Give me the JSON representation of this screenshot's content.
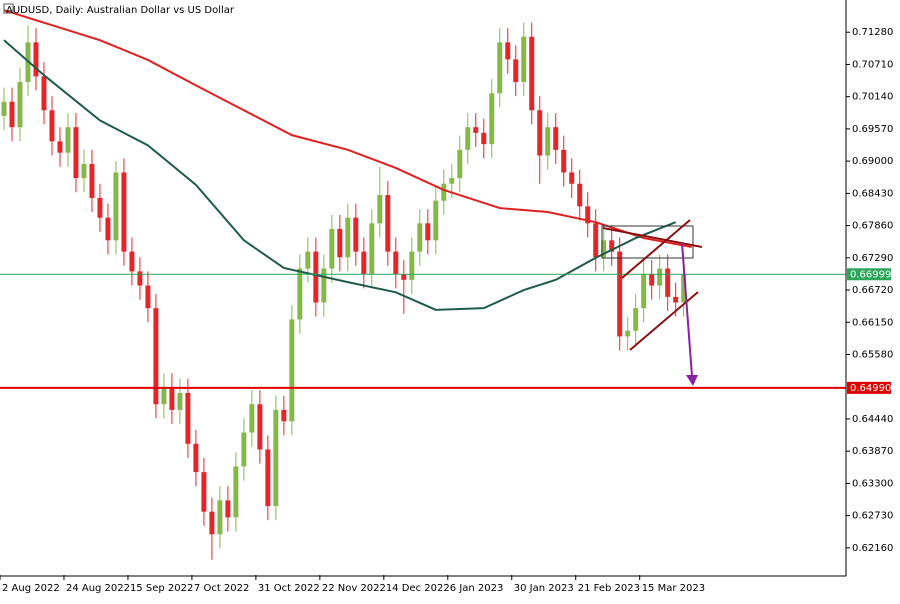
{
  "chart_data": {
    "type": "candlestick",
    "title": "AUDUSD, Daily:  Australian Dollar vs US Dollar",
    "up_color": "#86b849",
    "down_color": "#e3262a",
    "ylim": [
      0.6168,
      0.7185
    ],
    "yticks": [
      {
        "value": 0.7128,
        "label": "0.71280"
      },
      {
        "value": 0.7071,
        "label": "0.70710"
      },
      {
        "value": 0.7014,
        "label": "0.70140"
      },
      {
        "value": 0.6957,
        "label": "0.69570"
      },
      {
        "value": 0.69,
        "label": "0.69000"
      },
      {
        "value": 0.6843,
        "label": "0.68430"
      },
      {
        "value": 0.6786,
        "label": "0.67860"
      },
      {
        "value": 0.6729,
        "label": "0.67290"
      },
      {
        "value": 0.6672,
        "label": "0.66720"
      },
      {
        "value": 0.6615,
        "label": "0.66150"
      },
      {
        "value": 0.6558,
        "label": "0.65580"
      },
      {
        "value": 0.6444,
        "label": "0.64440"
      },
      {
        "value": 0.6387,
        "label": "0.63870"
      },
      {
        "value": 0.633,
        "label": "0.63300"
      },
      {
        "value": 0.6273,
        "label": "0.62730"
      },
      {
        "value": 0.6216,
        "label": "0.62160"
      }
    ],
    "xlim": [
      -0.5,
      105.3
    ],
    "xticks": [
      {
        "value": 0,
        "label": "2 Aug 2022"
      },
      {
        "value": 8,
        "label": "24 Aug 2022"
      },
      {
        "value": 16,
        "label": "15 Sep 2022"
      },
      {
        "value": 24,
        "label": "7 Oct 2022"
      },
      {
        "value": 32,
        "label": "31 Oct 2022"
      },
      {
        "value": 40,
        "label": "22 Nov 2022"
      },
      {
        "value": 48,
        "label": "14 Dec 2022"
      },
      {
        "value": 56,
        "label": "6 Jan 2023"
      },
      {
        "value": 64,
        "label": "30 Jan 2023"
      },
      {
        "value": 72,
        "label": "21 Feb 2023"
      },
      {
        "value": 80,
        "label": "15 Mar 2023"
      }
    ],
    "open": [
      0.698,
      0.7005,
      0.696,
      0.704,
      0.711,
      0.705,
      0.699,
      0.6935,
      0.6915,
      0.696,
      0.687,
      0.6895,
      0.6835,
      0.68,
      0.676,
      0.688,
      0.674,
      0.6705,
      0.668,
      0.664,
      0.647,
      0.65,
      0.646,
      0.649,
      0.64,
      0.635,
      0.628,
      0.624,
      0.63,
      0.627,
      0.636,
      0.642,
      0.647,
      0.639,
      0.629,
      0.646,
      0.644,
      0.662,
      0.671,
      0.674,
      0.665,
      0.671,
      0.678,
      0.673,
      0.68,
      0.674,
      0.67,
      0.679,
      0.684,
      0.674,
      0.67,
      0.669,
      0.674,
      0.679,
      0.676,
      0.683,
      0.686,
      0.687,
      0.692,
      0.696,
      0.695,
      0.693,
      0.702,
      0.711,
      0.708,
      0.704,
      0.712,
      0.699,
      0.691,
      0.696,
      0.692,
      0.688,
      0.686,
      0.682,
      0.679,
      0.673,
      0.676,
      0.674,
      0.659,
      0.66,
      0.664,
      0.67,
      0.668,
      0.671,
      0.666,
      0.665
    ],
    "high": [
      0.703,
      0.703,
      0.7065,
      0.714,
      0.7135,
      0.7075,
      0.7015,
      0.696,
      0.6985,
      0.6985,
      0.692,
      0.692,
      0.686,
      0.6825,
      0.69,
      0.6905,
      0.6765,
      0.673,
      0.6705,
      0.6665,
      0.6525,
      0.6525,
      0.6515,
      0.6515,
      0.6425,
      0.6375,
      0.6305,
      0.6325,
      0.6325,
      0.6385,
      0.6445,
      0.6495,
      0.6495,
      0.6415,
      0.6485,
      0.6485,
      0.6645,
      0.6735,
      0.6765,
      0.6765,
      0.6735,
      0.6805,
      0.6805,
      0.6825,
      0.6825,
      0.6765,
      0.6815,
      0.689,
      0.6865,
      0.6765,
      0.6725,
      0.6765,
      0.6815,
      0.6815,
      0.6855,
      0.6885,
      0.6895,
      0.6945,
      0.6985,
      0.6985,
      0.6975,
      0.7045,
      0.7135,
      0.7135,
      0.7105,
      0.7145,
      0.7145,
      0.7015,
      0.6985,
      0.6985,
      0.6945,
      0.6905,
      0.6885,
      0.6845,
      0.6815,
      0.6785,
      0.6785,
      0.6765,
      0.6625,
      0.6665,
      0.6725,
      0.6725,
      0.6735,
      0.6735,
      0.6685,
      0.6725
    ],
    "low": [
      0.6955,
      0.6935,
      0.6935,
      0.7015,
      0.7025,
      0.6965,
      0.691,
      0.689,
      0.689,
      0.6845,
      0.6845,
      0.681,
      0.6775,
      0.6735,
      0.6735,
      0.6715,
      0.668,
      0.6655,
      0.6615,
      0.6445,
      0.6445,
      0.6435,
      0.6435,
      0.6375,
      0.6325,
      0.6255,
      0.6195,
      0.6215,
      0.6245,
      0.6245,
      0.6335,
      0.6395,
      0.6365,
      0.6265,
      0.6265,
      0.6415,
      0.6415,
      0.6595,
      0.6685,
      0.6625,
      0.6625,
      0.6685,
      0.6705,
      0.6705,
      0.6715,
      0.6675,
      0.6675,
      0.6765,
      0.6715,
      0.6675,
      0.663,
      0.6665,
      0.6715,
      0.6735,
      0.6735,
      0.6805,
      0.6835,
      0.6845,
      0.6895,
      0.6925,
      0.6905,
      0.6905,
      0.6995,
      0.7055,
      0.7015,
      0.7015,
      0.6965,
      0.686,
      0.6885,
      0.6895,
      0.6855,
      0.6835,
      0.6795,
      0.6765,
      0.6705,
      0.6705,
      0.6715,
      0.6565,
      0.6565,
      0.6575,
      0.6615,
      0.6655,
      0.6655,
      0.6635,
      0.6625,
      0.6625
    ],
    "close": [
      0.7005,
      0.696,
      0.704,
      0.711,
      0.705,
      0.699,
      0.6935,
      0.6915,
      0.696,
      0.687,
      0.6895,
      0.6835,
      0.68,
      0.676,
      0.688,
      0.674,
      0.6705,
      0.668,
      0.664,
      0.647,
      0.65,
      0.646,
      0.649,
      0.64,
      0.635,
      0.628,
      0.624,
      0.63,
      0.627,
      0.636,
      0.642,
      0.647,
      0.639,
      0.629,
      0.646,
      0.644,
      0.662,
      0.671,
      0.674,
      0.665,
      0.671,
      0.678,
      0.673,
      0.68,
      0.674,
      0.67,
      0.679,
      0.684,
      0.674,
      0.67,
      0.669,
      0.674,
      0.679,
      0.676,
      0.683,
      0.686,
      0.687,
      0.692,
      0.696,
      0.695,
      0.693,
      0.702,
      0.711,
      0.708,
      0.704,
      0.712,
      0.699,
      0.691,
      0.696,
      0.692,
      0.688,
      0.686,
      0.682,
      0.679,
      0.673,
      0.676,
      0.674,
      0.659,
      0.66,
      0.664,
      0.67,
      0.668,
      0.671,
      0.666,
      0.665,
      0.67
    ],
    "lines": [
      {
        "color": "#e0201e",
        "x": [
          0,
          12,
          18,
          24,
          30,
          36,
          43,
          49,
          55,
          62,
          68,
          74,
          80,
          86
        ],
        "values": [
          0.7167,
          0.7114,
          0.7079,
          0.7034,
          0.699,
          0.6946,
          0.692,
          0.6888,
          0.6849,
          0.6817,
          0.681,
          0.6792,
          0.6764,
          0.6748
        ]
      },
      {
        "color": "#1d5c4c",
        "x": [
          0,
          5,
          12,
          18,
          24,
          30,
          35,
          43,
          49,
          54,
          60,
          65,
          69,
          74,
          79,
          84
        ],
        "values": [
          0.7114,
          0.7052,
          0.6972,
          0.6928,
          0.6858,
          0.676,
          0.6711,
          0.6686,
          0.6668,
          0.6637,
          0.664,
          0.6672,
          0.669,
          0.6729,
          0.6764,
          0.6792
        ]
      }
    ],
    "hlines": [
      {
        "value": 0.66999,
        "label": "0.66999",
        "color": "#2aa55a"
      },
      {
        "value": 0.6499,
        "label": "0.64990",
        "color": "#e00000"
      }
    ]
  }
}
